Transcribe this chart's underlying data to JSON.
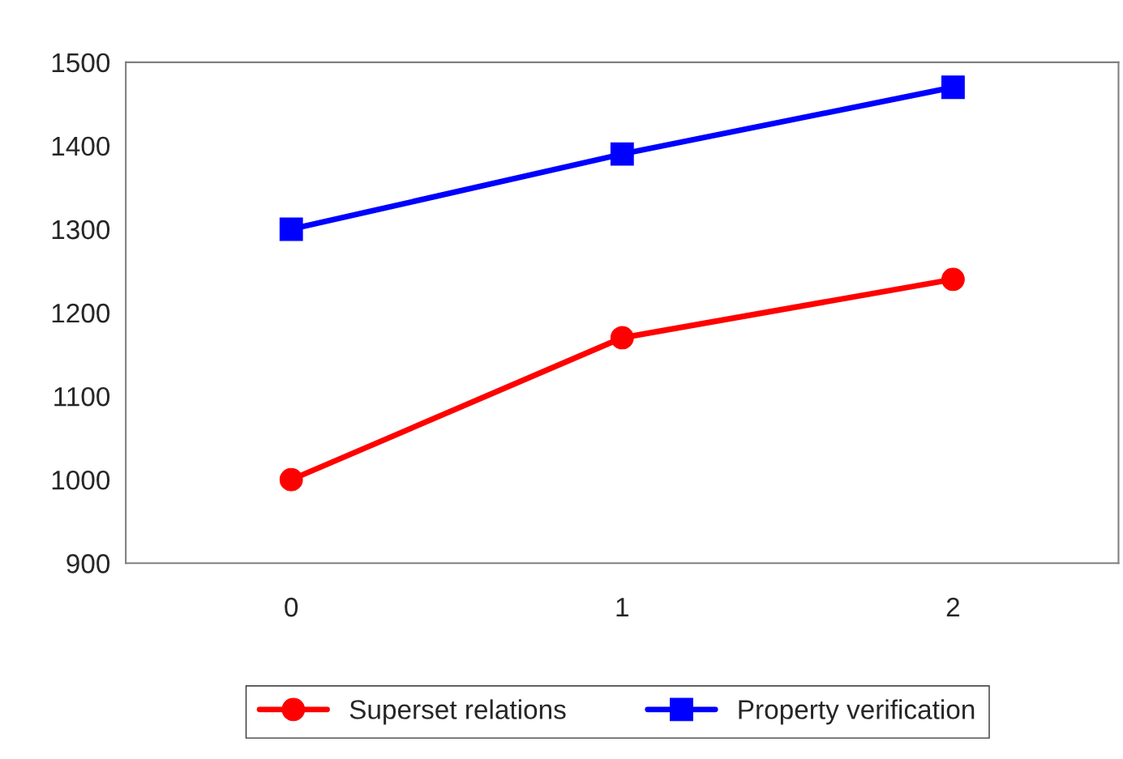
{
  "chart_data": {
    "type": "line",
    "categories": [
      "0",
      "1",
      "2"
    ],
    "series": [
      {
        "name": "Superset relations",
        "color": "#ff0000",
        "values": [
          1000,
          1170,
          1240
        ],
        "marker": "circle"
      },
      {
        "name": "Property verification",
        "color": "#0000ff",
        "values": [
          1300,
          1390,
          1470
        ],
        "marker": "square"
      }
    ],
    "ylim": [
      900,
      1500
    ],
    "yticks": [
      900,
      1000,
      1100,
      1200,
      1300,
      1400,
      1500
    ],
    "grid": false,
    "legend": "bottom",
    "line_style": "solid"
  }
}
